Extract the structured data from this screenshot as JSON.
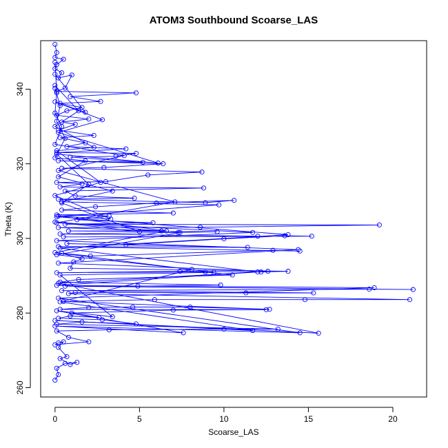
{
  "chart_data": {
    "type": "scatter",
    "title": "ATOM3 Southbound Scoarse_LAS",
    "xlabel": "Scoarse_LAS",
    "ylabel": "Theta (K)",
    "xlim": [
      -0.85,
      22.0
    ],
    "ylim": [
      257.5,
      353.0
    ],
    "x_ticks": [
      0,
      5,
      10,
      15,
      20
    ],
    "y_ticks": [
      260,
      280,
      300,
      320,
      340
    ],
    "x_tick_labels": [
      "0",
      "5",
      "10",
      "15",
      "20"
    ],
    "y_tick_labels": [
      "260",
      "280",
      "300",
      "320",
      "340"
    ],
    "series_color": "#0000ff",
    "grid": false,
    "legend": "none",
    "markers": "open-circle",
    "connected": true,
    "series": [
      {
        "points": [
          [
            0.0,
            262.0
          ],
          [
            0.2,
            263.5
          ],
          [
            0.1,
            265.2
          ],
          [
            0.6,
            266.5
          ],
          [
            1.3,
            266.8
          ],
          [
            0.9,
            266.2
          ],
          [
            0.3,
            267.8
          ],
          [
            0.7,
            268.3
          ],
          [
            0.2,
            270.8
          ],
          [
            0.5,
            272.3
          ],
          [
            0.2,
            272.0
          ],
          [
            0.0,
            271.5
          ],
          [
            2.0,
            272.3
          ],
          [
            0.8,
            273.5
          ],
          [
            0.1,
            275.2
          ],
          [
            3.2,
            275.5
          ],
          [
            10.0,
            275.7
          ],
          [
            13.2,
            275.7
          ],
          [
            0.1,
            277.0
          ],
          [
            1.6,
            277.6
          ],
          [
            4.8,
            277.1
          ],
          [
            2.8,
            278.2
          ],
          [
            0.2,
            278.6
          ],
          [
            0.9,
            279.2
          ],
          [
            2.6,
            278.8
          ],
          [
            1.0,
            280.0
          ],
          [
            7.0,
            280.8
          ],
          [
            12.5,
            280.9
          ],
          [
            0.3,
            281.0
          ],
          [
            2.0,
            281.5
          ],
          [
            4.6,
            281.6
          ],
          [
            8.0,
            281.6
          ],
          [
            12.7,
            281.0
          ],
          [
            0.5,
            283.1
          ],
          [
            5.9,
            283.6
          ],
          [
            14.8,
            283.6
          ],
          [
            21.0,
            283.6
          ],
          [
            0.8,
            285.2
          ],
          [
            1.2,
            285.5
          ],
          [
            11.3,
            285.4
          ],
          [
            15.3,
            285.4
          ],
          [
            0.4,
            286.0
          ],
          [
            18.6,
            286.4
          ],
          [
            21.2,
            286.3
          ],
          [
            0.6,
            287.2
          ],
          [
            4.9,
            287.2
          ],
          [
            9.8,
            287.5
          ],
          [
            0.3,
            288.3
          ],
          [
            1.4,
            289.0
          ],
          [
            10.5,
            290.2
          ],
          [
            8.9,
            291.0
          ],
          [
            0.1,
            290.8
          ],
          [
            7.4,
            291.2
          ],
          [
            12.2,
            291.0
          ],
          [
            13.8,
            291.2
          ],
          [
            0.9,
            292.0
          ],
          [
            1.1,
            293.7
          ],
          [
            1.6,
            294.5
          ],
          [
            0.4,
            296.0
          ],
          [
            2.1,
            295.3
          ],
          [
            12.9,
            296.8
          ],
          [
            14.5,
            296.6
          ],
          [
            0.2,
            297.8
          ],
          [
            11.4,
            297.6
          ],
          [
            0.7,
            298.6
          ],
          [
            4.2,
            298.3
          ],
          [
            10.0,
            299.9
          ],
          [
            13.6,
            300.7
          ],
          [
            15.2,
            300.6
          ],
          [
            0.5,
            300.4
          ],
          [
            12.0,
            300.6
          ],
          [
            0.3,
            301.2
          ],
          [
            7.3,
            301.6
          ],
          [
            9.6,
            301.8
          ],
          [
            0.8,
            302.0
          ],
          [
            6.3,
            302.0
          ],
          [
            0.2,
            302.9
          ],
          [
            8.6,
            303.0
          ],
          [
            19.2,
            303.6
          ],
          [
            0.6,
            303.8
          ],
          [
            5.8,
            304.2
          ],
          [
            1.3,
            305.0
          ],
          [
            3.2,
            306.0
          ],
          [
            0.1,
            306.3
          ],
          [
            7.0,
            306.8
          ],
          [
            0.4,
            307.6
          ],
          [
            2.4,
            308.5
          ],
          [
            6.0,
            309.5
          ],
          [
            10.6,
            310.2
          ],
          [
            8.9,
            309.6
          ],
          [
            0.2,
            310.5
          ],
          [
            4.7,
            310.8
          ],
          [
            1.2,
            311.4
          ],
          [
            0.6,
            312.7
          ],
          [
            8.8,
            313.5
          ],
          [
            0.3,
            313.8
          ],
          [
            1.6,
            314.6
          ],
          [
            0.1,
            315.0
          ],
          [
            3.0,
            315.2
          ],
          [
            5.5,
            317.0
          ],
          [
            8.7,
            317.8
          ],
          [
            0.4,
            318.8
          ],
          [
            2.9,
            319.0
          ],
          [
            6.4,
            320.0
          ],
          [
            0.2,
            320.8
          ],
          [
            5.2,
            320.4
          ],
          [
            0.9,
            321.8
          ],
          [
            3.6,
            322.0
          ],
          [
            4.8,
            322.8
          ],
          [
            0.1,
            323.0
          ],
          [
            4.2,
            324.0
          ],
          [
            0.7,
            324.6
          ],
          [
            1.8,
            325.6
          ],
          [
            0.3,
            327.0
          ],
          [
            2.3,
            327.6
          ],
          [
            0.2,
            329.0
          ],
          [
            1.2,
            330.6
          ],
          [
            0.4,
            331.2
          ],
          [
            2.0,
            332.0
          ],
          [
            0.1,
            333.0
          ],
          [
            0.7,
            334.2
          ],
          [
            1.6,
            335.1
          ],
          [
            0.3,
            336.2
          ],
          [
            2.7,
            336.7
          ],
          [
            0.9,
            338.0
          ],
          [
            4.8,
            339.0
          ],
          [
            0.1,
            339.4
          ],
          [
            0.6,
            340.3
          ],
          [
            1.0,
            343.8
          ],
          [
            0.2,
            343.0
          ],
          [
            0.4,
            344.4
          ],
          [
            0.0,
            345.5
          ],
          [
            0.1,
            346.6
          ],
          [
            0.5,
            348.0
          ],
          [
            0.0,
            348.5
          ],
          [
            0.1,
            349.8
          ],
          [
            0.0,
            352.0
          ]
        ]
      },
      {
        "points": [
          [
            0.0,
            340.2
          ],
          [
            0.3,
            335.6
          ],
          [
            0.1,
            331.4
          ],
          [
            0.6,
            326.8
          ],
          [
            0.0,
            321.6
          ],
          [
            1.8,
            320.8
          ],
          [
            0.2,
            316.5
          ],
          [
            3.4,
            312.7
          ],
          [
            0.4,
            309.8
          ],
          [
            9.7,
            309.0
          ],
          [
            0.1,
            305.8
          ],
          [
            13.8,
            301.0
          ],
          [
            0.3,
            297.4
          ],
          [
            12.0,
            291.0
          ],
          [
            0.2,
            288.0
          ],
          [
            15.6,
            274.6
          ],
          [
            0.0,
            278.0
          ],
          [
            11.7,
            275.3
          ],
          [
            0.3,
            283.0
          ],
          [
            8.1,
            291.7
          ],
          [
            0.1,
            295.6
          ],
          [
            7.4,
            301.6
          ],
          [
            0.0,
            304.4
          ],
          [
            5.0,
            301.8
          ],
          [
            0.4,
            309.5
          ],
          [
            2.0,
            314.5
          ],
          [
            0.1,
            322.6
          ],
          [
            6.1,
            320.2
          ],
          [
            0.2,
            328.4
          ],
          [
            2.8,
            331.8
          ],
          [
            0.0,
            336.6
          ],
          [
            1.8,
            333.8
          ],
          [
            0.0,
            344.0
          ]
        ]
      },
      {
        "points": [
          [
            0.0,
            347.2
          ],
          [
            0.1,
            339.0
          ],
          [
            0.0,
            333.6
          ],
          [
            0.4,
            330.0
          ],
          [
            0.0,
            325.2
          ],
          [
            4.1,
            322.2
          ],
          [
            0.2,
            318.2
          ],
          [
            7.1,
            309.8
          ],
          [
            0.1,
            304.2
          ],
          [
            11.7,
            301.6
          ],
          [
            0.1,
            299.4
          ],
          [
            14.4,
            297.0
          ],
          [
            0.2,
            293.4
          ],
          [
            12.6,
            291.2
          ],
          [
            0.1,
            287.4
          ],
          [
            18.9,
            286.8
          ],
          [
            0.2,
            284.0
          ],
          [
            14.5,
            274.7
          ],
          [
            0.0,
            276.5
          ],
          [
            7.6,
            274.7
          ],
          [
            0.1,
            280.6
          ],
          [
            3.4,
            279.0
          ],
          [
            0.3,
            290.2
          ],
          [
            9.4,
            290.9
          ],
          [
            0.0,
            296.2
          ],
          [
            6.6,
            302.0
          ],
          [
            0.2,
            306.0
          ],
          [
            3.3,
            305.2
          ],
          [
            0.0,
            311.5
          ],
          [
            2.7,
            315.0
          ],
          [
            0.1,
            323.5
          ],
          [
            2.3,
            324.4
          ],
          [
            0.0,
            330.0
          ],
          [
            1.4,
            334.2
          ],
          [
            0.0,
            341.0
          ]
        ]
      }
    ]
  }
}
